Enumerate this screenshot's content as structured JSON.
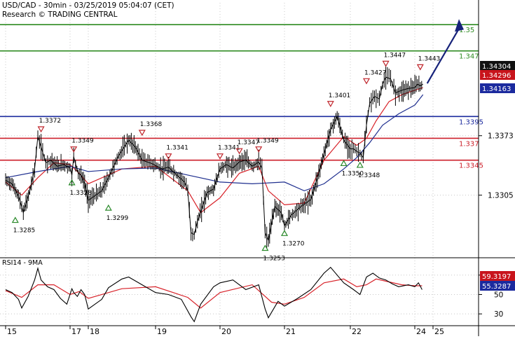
{
  "header": {
    "title": "USD/CAD - 30min - 03/25/2019 05:04:07 (CET)",
    "subtitle": "Research © TRADING CENTRAL"
  },
  "colors": {
    "candle": "#000000",
    "ma_fast": "#d8232a",
    "ma_slow": "#1f2f8f",
    "target_green": "#2e8b22",
    "pivot_blue": "#1b2a9e",
    "support_red": "#cc1f2a",
    "arrow": "#16227a",
    "up_marker": "#2a8a2a",
    "down_marker": "#c0262c",
    "grid": "#c8c8c8",
    "price_badge": "#111111",
    "red_badge": "#c8141c",
    "blue_badge": "#1b2a9e",
    "rsi_line": "#000000",
    "rsi_ma": "#d8232a",
    "rsi_badge_red": "#c8141c",
    "rsi_badge_blue": "#1b2a9e"
  },
  "chart_data": [
    {
      "type": "line",
      "title": "USD/CAD - 30min - 03/25/2019 05:04:07 (CET)",
      "x_labels": [
        "15",
        "17",
        "18",
        "19",
        "20",
        "21",
        "22",
        "24",
        "25"
      ],
      "y_ticks": [
        "1.3373",
        "1.3305"
      ],
      "ylim": [
        1.3235,
        1.3525
      ],
      "grid": true,
      "horizontal_levels": [
        {
          "value": 1.35,
          "label": "1.35",
          "color_key": "target_green"
        },
        {
          "value": 1.347,
          "label": "1.347",
          "color_key": "target_green"
        },
        {
          "value": 1.3395,
          "label": "1.3395",
          "color_key": "pivot_blue"
        },
        {
          "value": 1.337,
          "label": "1.337",
          "color_key": "support_red"
        },
        {
          "value": 1.3345,
          "label": "1.3345",
          "color_key": "support_red"
        }
      ],
      "price_badges": [
        {
          "value": 1.34304,
          "label": "1.34304",
          "color_key": "price_badge"
        },
        {
          "value": 1.34296,
          "label": "1.34296",
          "color_key": "red_badge"
        },
        {
          "value": 1.34163,
          "label": "1.34163",
          "color_key": "blue_badge"
        }
      ],
      "swing_points": [
        {
          "label": "1.3285",
          "kind": "low",
          "x_day": 15.3,
          "value": 1.3285
        },
        {
          "label": "1.3372",
          "kind": "high",
          "x_day": 16.1,
          "value": 1.3372
        },
        {
          "label": "1.3328",
          "kind": "low",
          "x_day": 17.1,
          "value": 1.3328
        },
        {
          "label": "1.3349",
          "kind": "high",
          "x_day": 17.2,
          "value": 1.3349
        },
        {
          "label": "1.3299",
          "kind": "low",
          "x_day": 18.3,
          "value": 1.3299
        },
        {
          "label": "1.3368",
          "kind": "high",
          "x_day": 18.8,
          "value": 1.3368
        },
        {
          "label": "1.3341",
          "kind": "high",
          "x_day": 19.2,
          "value": 1.3341
        },
        {
          "label": "1.3341",
          "kind": "high",
          "x_day": 20.0,
          "value": 1.3341
        },
        {
          "label": "1.3347",
          "kind": "high",
          "x_day": 20.3,
          "value": 1.3347
        },
        {
          "label": "1.3349",
          "kind": "high",
          "x_day": 20.6,
          "value": 1.3349
        },
        {
          "label": "1.3253",
          "kind": "low",
          "x_day": 20.7,
          "value": 1.3253
        },
        {
          "label": "1.3270",
          "kind": "low",
          "x_day": 21.0,
          "value": 1.327
        },
        {
          "label": "1.3401",
          "kind": "high",
          "x_day": 21.7,
          "value": 1.3401
        },
        {
          "label": "1.3350",
          "kind": "low",
          "x_day": 21.9,
          "value": 1.335
        },
        {
          "label": "1.3348",
          "kind": "low",
          "x_day": 22.3,
          "value": 1.3348
        },
        {
          "label": "1.3427",
          "kind": "high",
          "x_day": 22.5,
          "value": 1.3427
        },
        {
          "label": "1.3447",
          "kind": "high",
          "x_day": 23.1,
          "value": 1.3447
        },
        {
          "label": "1.3443",
          "kind": "high",
          "x_day": 24.3,
          "value": 1.3443
        }
      ],
      "series": [
        {
          "role": "price",
          "x": [
            15,
            15.2,
            15.4,
            15.55,
            15.75,
            15.9,
            16.0,
            16.1,
            16.25,
            16.4,
            16.6,
            16.8,
            17.0,
            17.1,
            17.2,
            17.3,
            17.45,
            17.6,
            17.8,
            18.0,
            18.2,
            18.3,
            18.45,
            18.6,
            18.7,
            18.8,
            18.95,
            19.1,
            19.2,
            19.3,
            19.45,
            19.5,
            19.55,
            19.6,
            19.65,
            19.8,
            19.9,
            20.0,
            20.1,
            20.2,
            20.3,
            20.4,
            20.5,
            20.6,
            20.65,
            20.7,
            20.75,
            20.85,
            20.95,
            21.0,
            21.1,
            21.25,
            21.4,
            21.5,
            21.6,
            21.7,
            21.8,
            21.9,
            22.0,
            22.1,
            22.2,
            22.3,
            22.4,
            22.5,
            22.6,
            22.75,
            22.9,
            23.0,
            23.1,
            23.25,
            23.4,
            23.6,
            23.8,
            24.0,
            24.15,
            24.3,
            24.45
          ],
          "values": [
            1.3322,
            1.3318,
            1.3304,
            1.3285,
            1.331,
            1.3335,
            1.3372,
            1.336,
            1.3342,
            1.3345,
            1.3338,
            1.334,
            1.3336,
            1.3328,
            1.3349,
            1.3341,
            1.333,
            1.3328,
            1.3318,
            1.3299,
            1.331,
            1.3325,
            1.335,
            1.3368,
            1.336,
            1.3345,
            1.3341,
            1.3335,
            1.3337,
            1.333,
            1.332,
            1.331,
            1.3262,
            1.326,
            1.3275,
            1.3308,
            1.3312,
            1.3335,
            1.334,
            1.3336,
            1.3343,
            1.3345,
            1.3338,
            1.3343,
            1.3336,
            1.3262,
            1.3253,
            1.3292,
            1.3285,
            1.327,
            1.3282,
            1.3292,
            1.33,
            1.3325,
            1.3352,
            1.338,
            1.3395,
            1.3368,
            1.3358,
            1.3358,
            1.3355,
            1.3353,
            1.3348,
            1.3385,
            1.341,
            1.3418,
            1.3415,
            1.3432,
            1.344,
            1.3438,
            1.3422,
            1.3425,
            1.3427,
            1.3428,
            1.3432,
            1.343,
            1.3432
          ]
        },
        {
          "role": "ma_fast",
          "x": [
            15,
            15.5,
            16.0,
            16.5,
            17.0,
            17.5,
            18.0,
            18.5,
            19.0,
            19.5,
            19.7,
            20.0,
            20.3,
            20.6,
            20.75,
            21.0,
            21.3,
            21.6,
            21.9,
            22.2,
            22.5,
            22.8,
            23.2,
            23.6,
            24.0,
            24.45
          ],
          "values": [
            1.332,
            1.3305,
            1.3325,
            1.3342,
            1.334,
            1.333,
            1.3318,
            1.3335,
            1.3338,
            1.331,
            1.3285,
            1.3302,
            1.333,
            1.3338,
            1.331,
            1.3294,
            1.3296,
            1.3345,
            1.3372,
            1.3362,
            1.337,
            1.339,
            1.3412,
            1.342,
            1.3425,
            1.3428
          ]
        },
        {
          "role": "ma_slow",
          "x": [
            15,
            16.0,
            17.0,
            18.0,
            18.5,
            19.0,
            19.5,
            20.0,
            20.5,
            21.0,
            21.3,
            21.6,
            21.9,
            22.2,
            22.6,
            23.0,
            23.5,
            24.0,
            24.45
          ],
          "values": [
            1.3325,
            1.3332,
            1.3338,
            1.3332,
            1.3335,
            1.3336,
            1.3328,
            1.332,
            1.3318,
            1.332,
            1.331,
            1.3318,
            1.3335,
            1.3348,
            1.3365,
            1.3385,
            1.3398,
            1.3408,
            1.342
          ]
        }
      ],
      "projection": {
        "from_value": 1.3428,
        "to_value": 1.35,
        "label": "1.35"
      }
    },
    {
      "type": "line",
      "title": "RSI14 - 9MA",
      "y_ticks": [
        "70",
        "50",
        "30"
      ],
      "ylim": [
        20,
        85
      ],
      "values_badges": [
        {
          "label": "59.3197",
          "color_key": "rsi_badge_red"
        },
        {
          "label": "55.3287",
          "color_key": "rsi_badge_blue"
        }
      ],
      "series": [
        {
          "role": "rsi",
          "x": [
            15,
            15.2,
            15.4,
            15.5,
            15.7,
            15.9,
            16.0,
            16.1,
            16.3,
            16.5,
            16.7,
            16.9,
            17.1,
            17.2,
            17.4,
            17.6,
            17.8,
            18.0,
            18.2,
            18.3,
            18.5,
            18.6,
            18.8,
            19.0,
            19.2,
            19.4,
            19.55,
            19.6,
            19.7,
            19.9,
            20.0,
            20.2,
            20.4,
            20.6,
            20.7,
            20.75,
            20.9,
            21.0,
            21.2,
            21.4,
            21.6,
            21.7,
            21.9,
            22.1,
            22.3,
            22.5,
            22.7,
            22.9,
            23.1,
            23.3,
            23.5,
            23.8,
            24.0,
            24.2,
            24.4
          ],
          "values": [
            55,
            52,
            45,
            36,
            48,
            65,
            77,
            65,
            58,
            55,
            46,
            40,
            56,
            52,
            48,
            55,
            50,
            35,
            45,
            57,
            66,
            68,
            60,
            52,
            50,
            45,
            27,
            22,
            40,
            58,
            62,
            65,
            55,
            60,
            35,
            26,
            43,
            38,
            46,
            55,
            72,
            78,
            62,
            55,
            50,
            68,
            72,
            67,
            65,
            61,
            58,
            60,
            58,
            62,
            55
          ]
        },
        {
          "role": "rsi_ma",
          "x": [
            15,
            15.5,
            16.0,
            16.5,
            17.0,
            17.5,
            18.0,
            18.5,
            19.0,
            19.5,
            19.7,
            20.0,
            20.5,
            20.8,
            21.0,
            21.3,
            21.6,
            21.9,
            22.2,
            22.5,
            22.8,
            23.2,
            23.6,
            24.0,
            24.4
          ],
          "values": [
            54,
            47,
            60,
            60,
            50,
            53,
            46,
            56,
            58,
            47,
            36,
            52,
            60,
            42,
            40,
            47,
            62,
            66,
            58,
            60,
            66,
            63,
            60,
            59,
            59
          ]
        }
      ]
    }
  ]
}
